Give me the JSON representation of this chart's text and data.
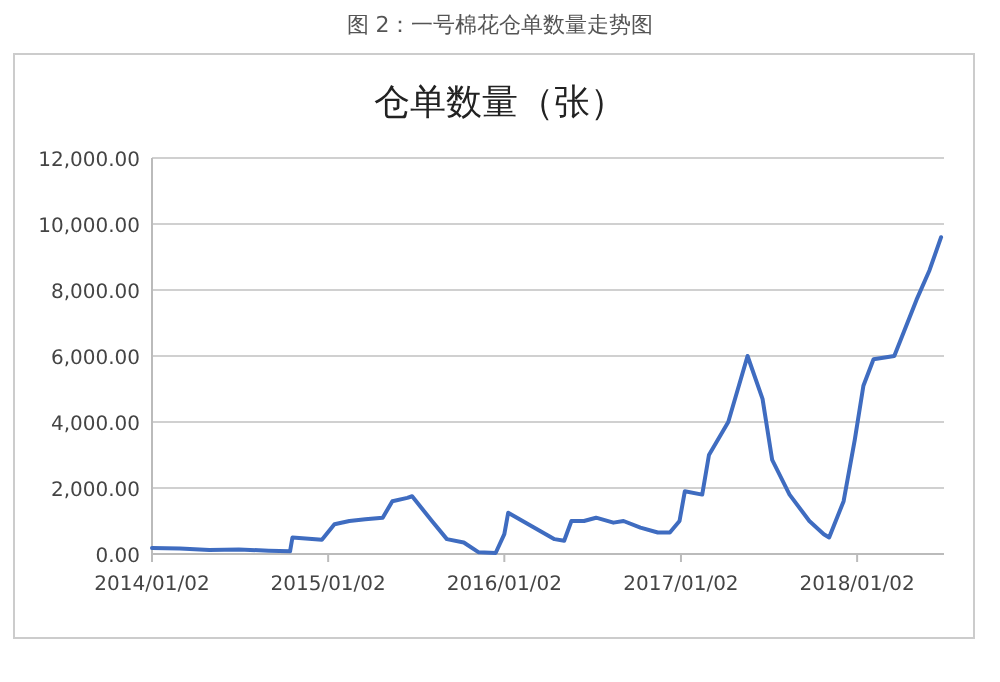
{
  "chart_data": {
    "type": "line",
    "title": "仓单数量（张）",
    "annotations": [
      "图 2：一号棉花仓单数量走势图"
    ],
    "x": [
      "2014-01-02",
      "2014-03-01",
      "2014-05-01",
      "2014-07-01",
      "2014-09-01",
      "2014-10-15",
      "2014-10-20",
      "2014-12-20",
      "2015-01-15",
      "2015-02-15",
      "2015-03-20",
      "2015-04-25",
      "2015-05-15",
      "2015-06-15",
      "2015-06-25",
      "2015-08-05",
      "2015-09-05",
      "2015-10-10",
      "2015-11-10",
      "2015-12-15",
      "2016-01-02",
      "2016-01-10",
      "2016-04-15",
      "2016-05-05",
      "2016-05-20",
      "2016-06-15",
      "2016-07-10",
      "2016-08-15",
      "2016-09-05",
      "2016-10-10",
      "2016-11-15",
      "2016-12-10",
      "2016-12-30",
      "2017-01-10",
      "2017-02-15",
      "2017-03-01",
      "2017-04-10",
      "2017-05-20",
      "2017-06-20",
      "2017-07-10",
      "2017-08-15",
      "2017-09-25",
      "2017-10-25",
      "2017-11-05",
      "2017-12-05",
      "2017-12-28",
      "2018-01-15",
      "2018-02-05",
      "2018-03-20",
      "2018-05-05",
      "2018-06-01",
      "2018-06-25"
    ],
    "values": [
      180,
      170,
      120,
      140,
      100,
      80,
      500,
      430,
      900,
      1000,
      1050,
      1100,
      1600,
      1700,
      1750,
      1000,
      450,
      350,
      50,
      30,
      600,
      1250,
      450,
      400,
      1000,
      1000,
      1100,
      950,
      1000,
      800,
      650,
      650,
      1000,
      1900,
      1800,
      3000,
      4000,
      6000,
      4700,
      2850,
      1800,
      1000,
      600,
      500,
      1600,
      3450,
      5100,
      5900,
      6000,
      7700,
      8600,
      9600
    ],
    "color": "#3f6cc0",
    "xlim": [
      "2014-01-02",
      "2018-07-01"
    ],
    "xticks": [
      {
        "value": "2014-01-02",
        "label": "2014/01/02"
      },
      {
        "value": "2015-01-02",
        "label": "2015/01/02"
      },
      {
        "value": "2016-01-02",
        "label": "2016/01/02"
      },
      {
        "value": "2017-01-02",
        "label": "2017/01/02"
      },
      {
        "value": "2018-01-02",
        "label": "2018/01/02"
      }
    ],
    "ylim": [
      0,
      12000
    ],
    "yticks": [
      {
        "value": 0,
        "label": "0.00"
      },
      {
        "value": 2000,
        "label": "2,000.00"
      },
      {
        "value": 4000,
        "label": "4,000.00"
      },
      {
        "value": 6000,
        "label": "6,000.00"
      },
      {
        "value": 8000,
        "label": "8,000.00"
      },
      {
        "value": 10000,
        "label": "10,000.00"
      },
      {
        "value": 12000,
        "label": "12,000.00"
      }
    ],
    "grid": "y"
  }
}
